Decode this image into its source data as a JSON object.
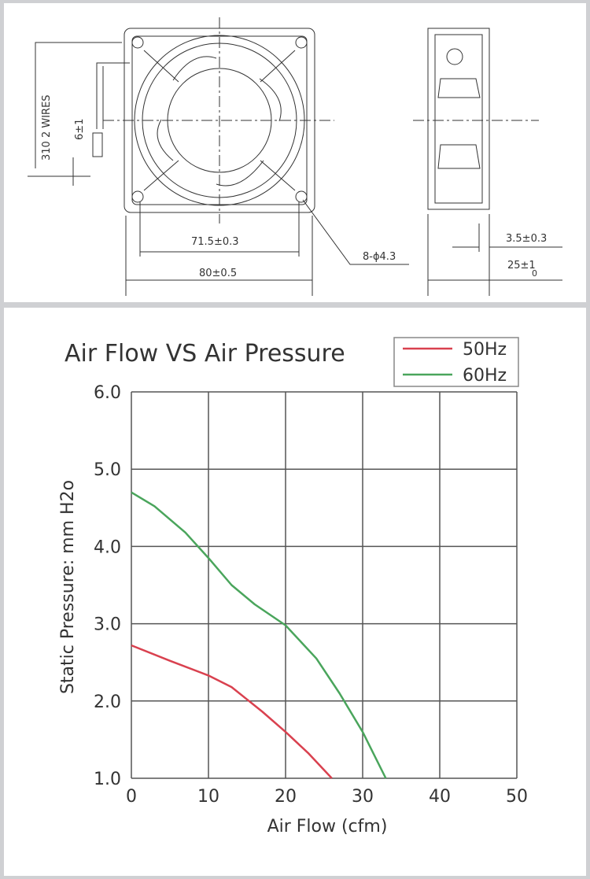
{
  "drawing": {
    "wires_label": "310   2 WIRES",
    "wire_strip_label": "6±1",
    "hole_spacing_label": "71.5±0.3",
    "width_label": "80±0.5",
    "hole_label": "8-ϕ4.3",
    "flange_label": "3.5±0.3",
    "depth_label": "25±1",
    "depth_tol_label": "0"
  },
  "chart_data": {
    "type": "line",
    "title": "Air Flow VS Air Pressure",
    "xlabel": "Air Flow (cfm)",
    "ylabel": "Static Pressure: mm  H2o",
    "xlim": [
      0,
      50
    ],
    "ylim": [
      1.0,
      6.0
    ],
    "x_ticks": [
      "0",
      "10",
      "20",
      "30",
      "40",
      "50"
    ],
    "y_ticks": [
      "1.0",
      "2.0",
      "3.0",
      "4.0",
      "5.0",
      "6.0"
    ],
    "grid": true,
    "legend": "top-right",
    "series": [
      {
        "name": "50Hz",
        "color": "#d9414f",
        "x": [
          0,
          5,
          10,
          13,
          15,
          17,
          20,
          23,
          26
        ],
        "y": [
          2.72,
          2.52,
          2.33,
          2.18,
          2.02,
          1.86,
          1.6,
          1.32,
          1.0
        ]
      },
      {
        "name": "60Hz",
        "color": "#4aa55c",
        "x": [
          0,
          3,
          7,
          10,
          13,
          16,
          20,
          24,
          27,
          30,
          33
        ],
        "y": [
          4.7,
          4.52,
          4.18,
          3.85,
          3.5,
          3.25,
          2.98,
          2.55,
          2.1,
          1.6,
          1.0
        ]
      }
    ]
  }
}
